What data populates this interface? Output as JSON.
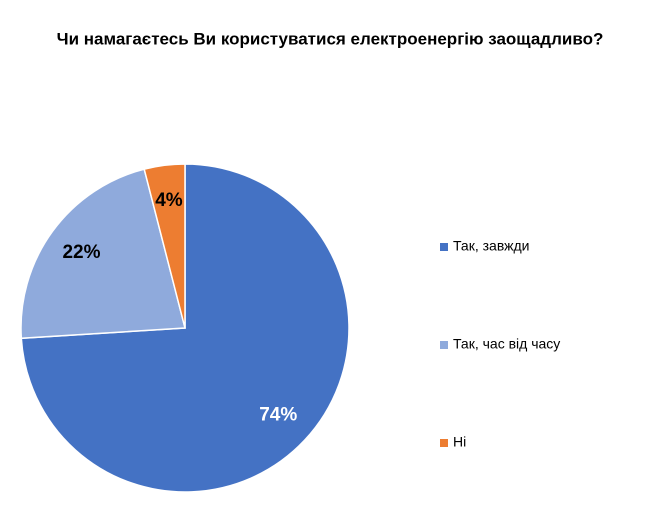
{
  "chart_data": {
    "type": "pie",
    "title": "Чи намагаєтесь Ви користуватися електроенергію заощадливо?",
    "categories": [
      "Так, завжди",
      "Так, час від часу",
      "Ні"
    ],
    "values": [
      74,
      22,
      4
    ],
    "value_labels": [
      "74%",
      "22%",
      "4%"
    ],
    "colors": [
      "#4472c4",
      "#8faadc",
      "#ed7d31"
    ],
    "label_colors": [
      "#ffffff",
      "#000000",
      "#000000"
    ],
    "legend": "right"
  }
}
